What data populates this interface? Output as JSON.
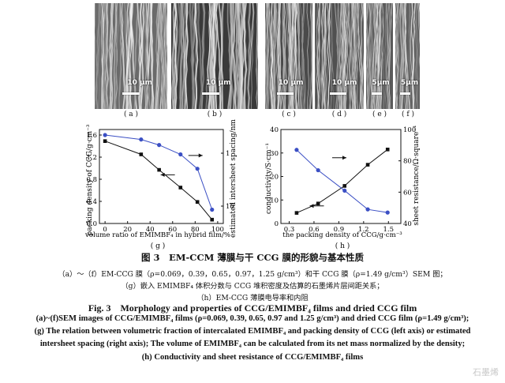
{
  "sem_panels": [
    {
      "label": "( a )",
      "scale": "10 μm"
    },
    {
      "label": "( b )",
      "scale": "10 μm"
    },
    {
      "label": "( c )",
      "scale": "10 μm"
    },
    {
      "label": "( d )",
      "scale": "10 μm"
    },
    {
      "label": "( e )",
      "scale": "5μm"
    },
    {
      "label": "( f )",
      "scale": "5μm"
    }
  ],
  "chart_data": [
    {
      "type": "line",
      "panel_label": "( g )",
      "xlabel": "volume ratio of EMIMBF₄ in hybrid film/%",
      "ylabel": "packing density of CCG/g·cm⁻³",
      "y2label": "estimated intersheet spacing/nm",
      "xlim": [
        -5,
        105
      ],
      "ylim": [
        0,
        1.7
      ],
      "x_ticks": [
        "0",
        "20",
        "40",
        "60",
        "80",
        "100"
      ],
      "y_ticks": [
        "0.0",
        "0.4",
        "0.8",
        "1.2",
        "1.6"
      ],
      "y2_ticks": [
        "1",
        "10"
      ],
      "y2_scale": "log",
      "series": [
        {
          "axis": "left",
          "color": "#111111",
          "marker": "square",
          "x": [
            0,
            32,
            48,
            67,
            82,
            95
          ],
          "y": [
            1.49,
            1.25,
            0.97,
            0.65,
            0.39,
            0.069
          ]
        },
        {
          "axis": "right",
          "color": "#3b4fc4",
          "marker": "circle",
          "x": [
            0,
            32,
            48,
            67,
            82,
            95
          ],
          "y": [
            1.6,
            1.52,
            1.42,
            1.25,
            0.99,
            0.25
          ]
        }
      ],
      "arrows": [
        {
          "direction": "left"
        },
        {
          "direction": "right"
        }
      ]
    },
    {
      "type": "line",
      "panel_label": "( h )",
      "xlabel": "the packing density of CCG/g·cm⁻³",
      "ylabel": "conductivity/S·cm⁻¹",
      "y2label": "sheet resistance/Ω·square⁻¹",
      "xlim": [
        0.2,
        1.65
      ],
      "ylim": [
        0,
        40
      ],
      "y2lim": [
        40,
        100
      ],
      "x_ticks": [
        "0.3",
        "0.6",
        "0.9",
        "1.2",
        "1.5"
      ],
      "y_ticks": [
        "0",
        "10",
        "20",
        "30",
        "40"
      ],
      "y2_ticks": [
        "40",
        "60",
        "80",
        "100"
      ],
      "series": [
        {
          "axis": "left",
          "color": "#111111",
          "marker": "square",
          "x": [
            0.39,
            0.65,
            0.97,
            1.25,
            1.49
          ],
          "y": [
            4.5,
            8.5,
            16,
            25,
            31.5
          ]
        },
        {
          "axis": "right",
          "color": "#3b4fc4",
          "marker": "circle",
          "x": [
            0.39,
            0.65,
            0.97,
            1.25,
            1.49
          ],
          "y": [
            87,
            74,
            61,
            49,
            47
          ]
        }
      ],
      "arrows": [
        {
          "direction": "left"
        },
        {
          "direction": "right"
        }
      ]
    }
  ],
  "caption": {
    "cn_title": "图 3　EM-CCM 薄膜与干 CCG 膜的形貌与基本性质",
    "cn_lines": [
      "（a）～（f）EM-CCG 膜（ρ=0.069，0.39，0.65，0.97，1.25 g/cm³）和干 CCG 膜（ρ=1.49 g/cm³）SEM 图；",
      "（g）嵌入 EMIMBF₄ 体积分数与 CCG 堆积密度及估算的石墨烯片层间距关系；",
      "（h）EM-CCG 薄膜电导率和内阻"
    ],
    "en_title": "Fig. 3　Morphology and properties of CCG/EMIMBF₄ films and dried CCG film",
    "en_lines": [
      "(a)~(f)SEM images of CCG/EMIMBF₄ films (ρ=0.069, 0.39, 0.65, 0.97 and 1.25 g/cm³) and dried CCG film (ρ=1.49 g/cm³);",
      "(g) The relation between volumetric fraction of intercalated EMIMBF₄ and packing density of CCG (left axis) or estimated",
      "intersheet spacing (right axis); The volume of EMIMBF₄ can be calculated from its net mass normalized by the density;",
      "(h) Conductivity and sheet resistance of CCG/EMIMBF₄ films"
    ]
  },
  "watermark": "石墨烯"
}
